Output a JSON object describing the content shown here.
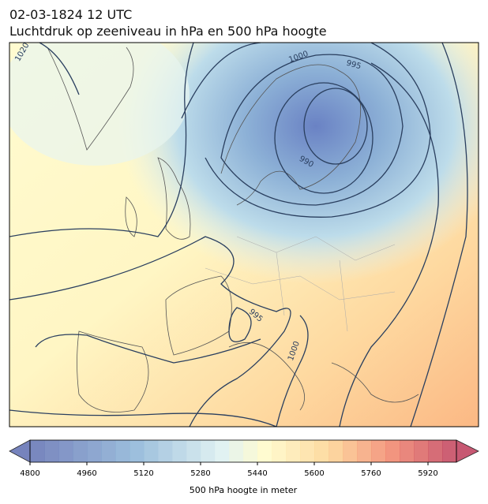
{
  "header": {
    "date": "02-03-1824 12 UTC",
    "title": "Luchtdruk op zeeniveau in hPa en 500 hPa hoogte"
  },
  "map": {
    "contour_labels": [
      "1020",
      "1000",
      "995",
      "990",
      "995",
      "1000"
    ]
  },
  "colorbar": {
    "label": "500 hPa hoogte in meter",
    "lim": [
      4800,
      6000
    ],
    "step": 40,
    "ticks": [
      4800,
      4960,
      5120,
      5280,
      5440,
      5600,
      5760,
      5920
    ]
  }
}
